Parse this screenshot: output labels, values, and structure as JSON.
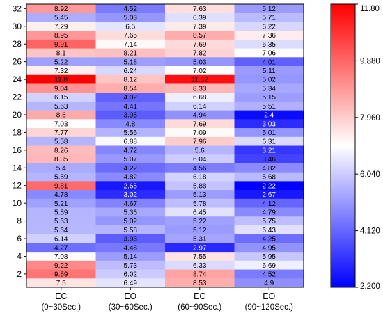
{
  "chart_data": {
    "type": "heatmap",
    "title": "",
    "xlabel": "",
    "ylabel": "",
    "columns": [
      {
        "top": "EC",
        "bottom": "(0~30Sec.)"
      },
      {
        "top": "EO",
        "bottom": "(30~60Sec.)"
      },
      {
        "top": "EC",
        "bottom": "(60~90Sec.)"
      },
      {
        "top": "EO",
        "bottom": "(90~120Sec.)"
      }
    ],
    "rows_count": 32,
    "y_ticks": [
      2,
      4,
      6,
      8,
      10,
      12,
      14,
      16,
      18,
      20,
      22,
      24,
      26,
      28,
      30,
      32
    ],
    "values_rows_top_to_bottom": [
      [
        8.92,
        4.52,
        7.63,
        5.12
      ],
      [
        5.45,
        5.03,
        6.39,
        5.71
      ],
      [
        7.29,
        6.5,
        7.39,
        6.22
      ],
      [
        8.95,
        7.65,
        8.57,
        7.36
      ],
      [
        9.91,
        7.14,
        7.69,
        6.35
      ],
      [
        8.1,
        8.21,
        7.82,
        7.06
      ],
      [
        5.22,
        5.18,
        5.03,
        4.01
      ],
      [
        7.32,
        6.24,
        7.02,
        5.11
      ],
      [
        11.8,
        8.12,
        11.52,
        5.02
      ],
      [
        9.04,
        8.54,
        8.33,
        5.34
      ],
      [
        6.15,
        4.02,
        6.68,
        5.15
      ],
      [
        5.63,
        4.41,
        6.14,
        5.51
      ],
      [
        8.6,
        3.95,
        4.94,
        2.4
      ],
      [
        7.03,
        4.8,
        7.69,
        3.03
      ],
      [
        7.77,
        5.56,
        7.09,
        5.01
      ],
      [
        5.58,
        6.88,
        7.96,
        6.31
      ],
      [
        8.26,
        4.72,
        5.6,
        3.21
      ],
      [
        8.35,
        5.07,
        6.04,
        3.46
      ],
      [
        5.4,
        4.22,
        4.56,
        4.82
      ],
      [
        5.59,
        4.82,
        6.18,
        5.68
      ],
      [
        9.81,
        2.65,
        5.88,
        2.22
      ],
      [
        4.78,
        3.02,
        5.13,
        2.67
      ],
      [
        5.21,
        4.67,
        5.78,
        4.12
      ],
      [
        5.59,
        5.36,
        6.45,
        4.79
      ],
      [
        5.63,
        5.02,
        5.22,
        5.75
      ],
      [
        5.64,
        5.58,
        5.12,
        6.43
      ],
      [
        6.14,
        3.93,
        5.31,
        4.25
      ],
      [
        4.27,
        4.48,
        2.97,
        4.95
      ],
      [
        7.08,
        5.14,
        7.55,
        5.95
      ],
      [
        9.22,
        5.73,
        6.33,
        6.69
      ],
      [
        9.59,
        6.02,
        8.74,
        4.52
      ],
      [
        7.5,
        6.49,
        8.53,
        4.9
      ]
    ],
    "colorbar": {
      "min": 2.2,
      "max": 11.8,
      "ticks": [
        "2.200",
        "4.120",
        "6.040",
        "7.960",
        "9.880",
        "11.80"
      ],
      "colors": {
        "low": "#0000ff",
        "mid": "#ffffff",
        "high": "#ff0000"
      }
    }
  }
}
